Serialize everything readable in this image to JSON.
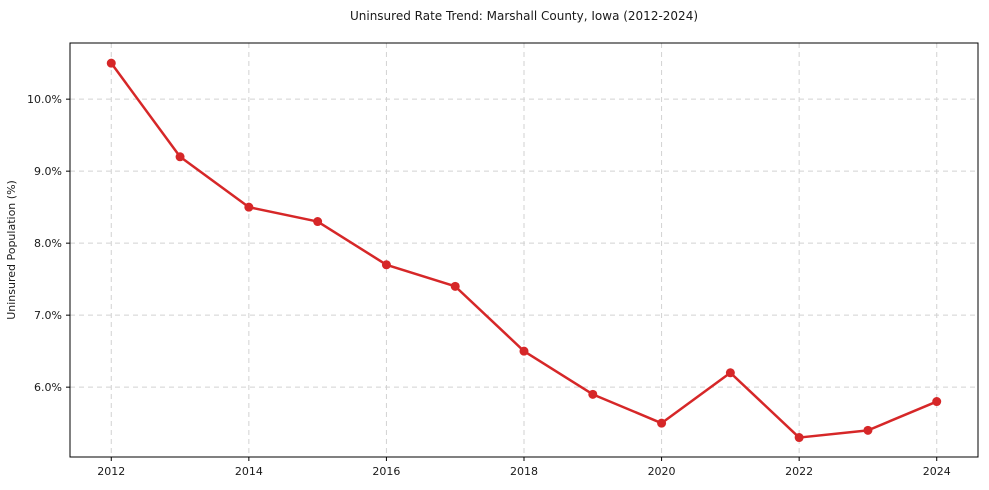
{
  "chart_data": {
    "type": "line",
    "title": "Uninsured Rate Trend: Marshall County, Iowa (2012-2024)",
    "xlabel": "",
    "ylabel": "Uninsured Population (%)",
    "x": [
      2012,
      2013,
      2014,
      2015,
      2016,
      2017,
      2018,
      2019,
      2020,
      2021,
      2022,
      2023,
      2024
    ],
    "values": [
      10.5,
      9.2,
      8.5,
      8.3,
      7.7,
      7.4,
      6.5,
      5.9,
      5.5,
      6.2,
      5.3,
      5.4,
      5.8
    ],
    "xlim": [
      2011.4,
      2024.6
    ],
    "ylim": [
      5.03,
      10.78
    ],
    "xticks": {
      "values": [
        2012,
        2014,
        2016,
        2018,
        2020,
        2022,
        2024
      ],
      "labels": [
        "2012",
        "2014",
        "2016",
        "2018",
        "2020",
        "2022",
        "2024"
      ]
    },
    "yticks": {
      "values": [
        6,
        7,
        8,
        9,
        10
      ],
      "labels": [
        "6.0%",
        "7.0%",
        "8.0%",
        "9.0%",
        "10.0%"
      ]
    },
    "grid": true,
    "grid_style": "dashed",
    "legend": "none",
    "marker": "circle",
    "colors": {
      "line": "#d62728",
      "marker": "#d62728",
      "grid": "#d2d2d2",
      "spine": "#000000",
      "text": "#1a1a1a",
      "background": "#ffffff"
    }
  }
}
